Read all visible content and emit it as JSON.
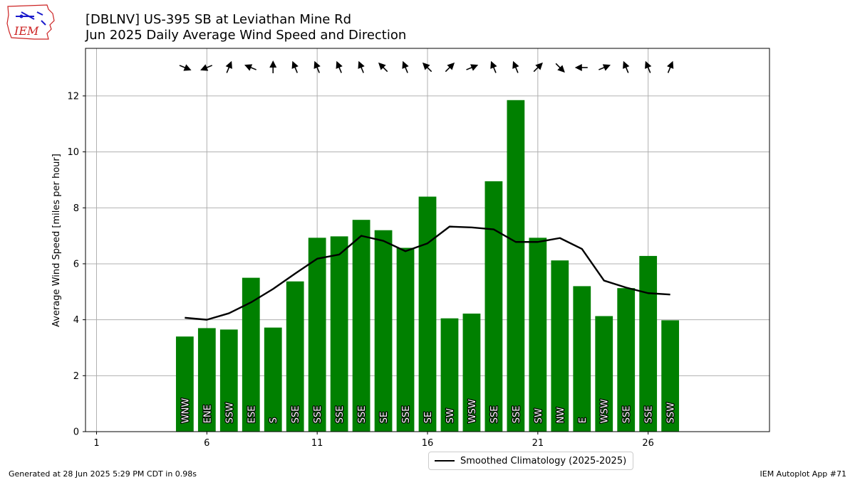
{
  "header": {
    "title_line1": "[DBLNV] US-395 SB at Leviathan Mine Rd",
    "title_line2": "Jun 2025 Daily Average Wind Speed and Direction",
    "logo_text": "IEM"
  },
  "footer": {
    "generated": "Generated at 28 Jun 2025 5:29 PM CDT in 0.98s",
    "app": "IEM Autoplot App #71"
  },
  "legend": {
    "label": "Smoothed Climatology (2025-2025)"
  },
  "chart_data": {
    "type": "bar",
    "title": "",
    "xlabel": "",
    "ylabel": "Average Wind Speed [miles per hour]",
    "xlim": [
      0.5,
      31.5
    ],
    "ylim": [
      0,
      13.7
    ],
    "xticks": [
      1,
      6,
      11,
      16,
      21,
      26
    ],
    "yticks": [
      0,
      2,
      4,
      6,
      8,
      10,
      12
    ],
    "grid": true,
    "legend_position": "bottom-center",
    "bar_color": "#008000",
    "line_color": "#000000",
    "days": [
      5,
      6,
      7,
      8,
      9,
      10,
      11,
      12,
      13,
      14,
      15,
      16,
      17,
      18,
      19,
      20,
      21,
      22,
      23,
      24,
      25,
      26,
      27
    ],
    "values": [
      3.4,
      3.7,
      3.65,
      5.5,
      3.72,
      5.37,
      6.93,
      6.98,
      7.57,
      7.2,
      6.57,
      8.4,
      4.05,
      4.22,
      8.95,
      11.85,
      6.93,
      6.12,
      5.2,
      4.13,
      5.13,
      6.28,
      3.98
    ],
    "directions": [
      "WNW",
      "ENE",
      "SSW",
      "ESE",
      "S",
      "SSE",
      "SSE",
      "SSE",
      "SSE",
      "SE",
      "SSE",
      "SE",
      "SW",
      "WSW",
      "SSE",
      "SSE",
      "SW",
      "NW",
      "E",
      "WSW",
      "SSE",
      "SSE",
      "SSW"
    ],
    "climatology": {
      "name": "Smoothed Climatology (2025-2025)",
      "values": [
        4.07,
        4.0,
        4.23,
        4.62,
        5.1,
        5.65,
        6.18,
        6.33,
        7.0,
        6.82,
        6.45,
        6.73,
        7.33,
        7.3,
        7.23,
        6.78,
        6.78,
        6.92,
        6.53,
        5.4,
        5.15,
        4.95,
        4.9
      ]
    }
  }
}
